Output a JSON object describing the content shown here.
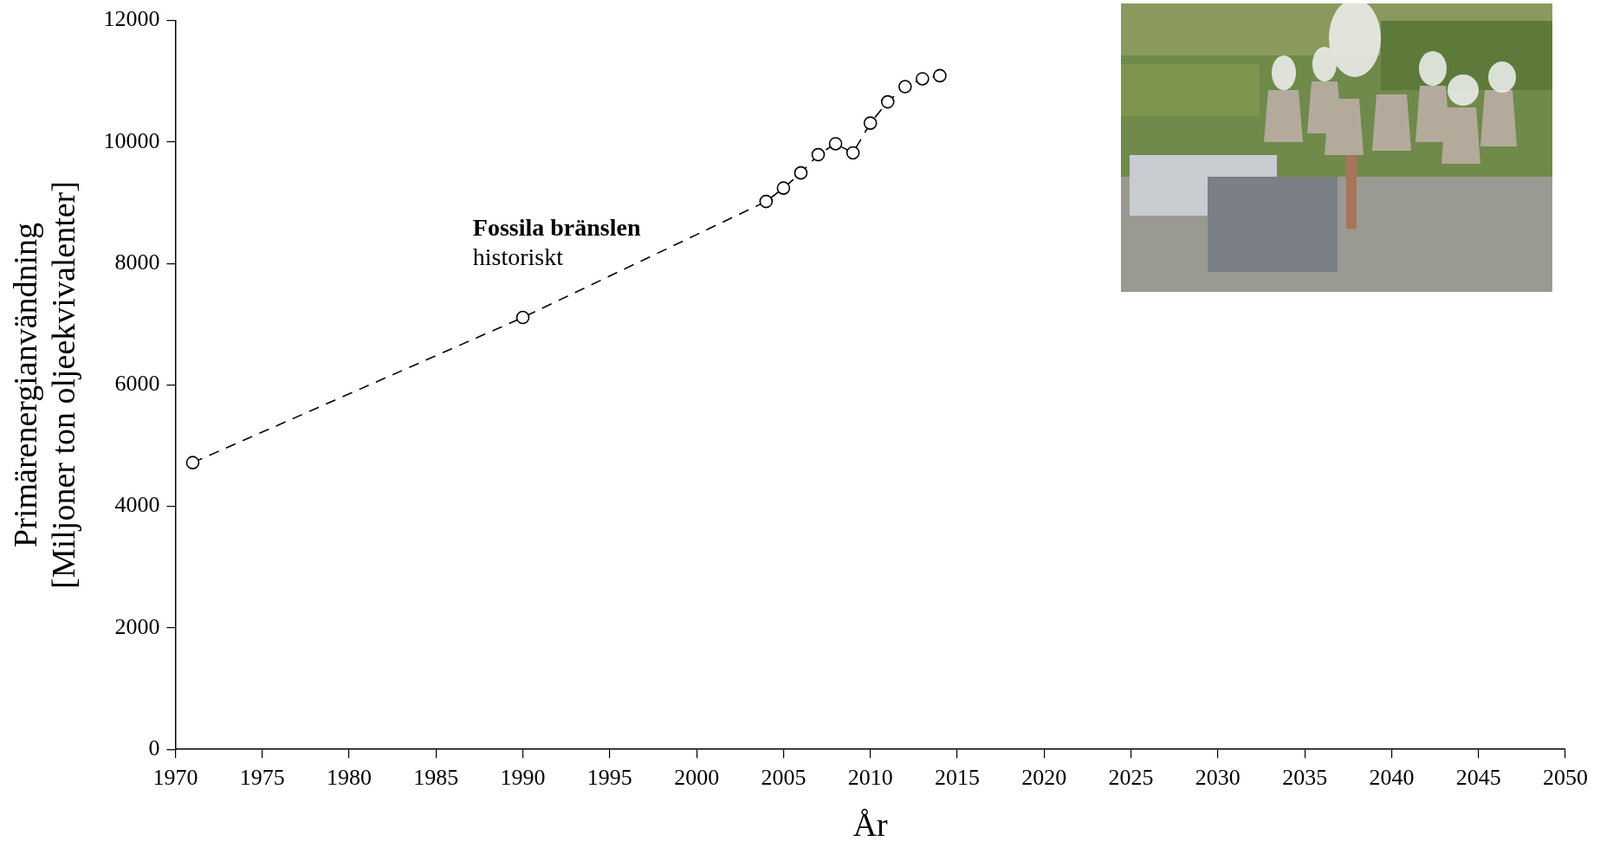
{
  "chart_data": {
    "type": "line",
    "x_label": "År",
    "y_label": [
      "Primärenergianvändning",
      "[Miljoner ton oljeekvivalenter]"
    ],
    "annotations": [
      "Fossila bränslen",
      "historiskt"
    ],
    "x": [
      1971,
      1990,
      2004,
      2005,
      2006,
      2007,
      2008,
      2009,
      2010,
      2011,
      2012,
      2013,
      2014
    ],
    "series": [
      {
        "name": "Fossila bränslen",
        "color": "#000000",
        "marker": "circle",
        "line_style": "dashed",
        "values": [
          4720,
          7110,
          9020,
          9240,
          9490,
          9790,
          9970,
          9820,
          10310,
          10660,
          10910,
          11040,
          11090
        ]
      }
    ],
    "xlim": [
      1970,
      2050
    ],
    "xticks": [
      1970,
      1975,
      1980,
      1985,
      1990,
      1995,
      2000,
      2005,
      2010,
      2015,
      2020,
      2025,
      2030,
      2035,
      2040,
      2045,
      2050
    ],
    "ylim": [
      0,
      12000
    ],
    "yticks": [
      0,
      2000,
      4000,
      6000,
      8000,
      10000,
      12000
    ],
    "grid": false,
    "legend": false
  }
}
